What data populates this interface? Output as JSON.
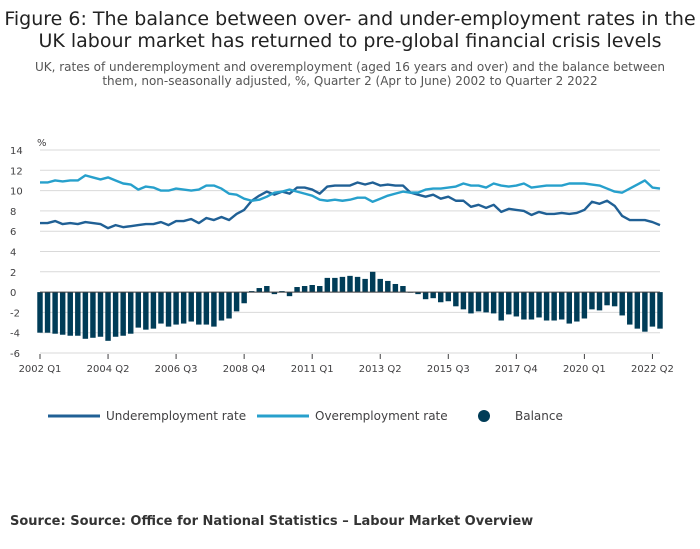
{
  "title": "Figure 6: The balance between over- and under-employment rates in the UK labour market has returned to pre-global financial crisis levels",
  "subtitle": "UK, rates of underemployment and overemployment (aged 16 years and over) and the balance between them, non-seasonally adjusted, %, Quarter 2 (Apr to June) 2002 to Quarter 2 2022",
  "source": "Source: Source: Office for National Statistics – Labour Market Overview",
  "colors": {
    "under": "#206095",
    "over": "#27a0cc",
    "balance": "#003c57",
    "grid": "#d9d9d9",
    "zero": "#414042"
  },
  "chart_data": {
    "type": "line",
    "ylabel": "%",
    "ylim": [
      -6,
      14
    ],
    "y_ticks": [
      -6,
      -4,
      -2,
      0,
      2,
      4,
      6,
      8,
      10,
      12,
      14
    ],
    "x_start": "2002 Q1",
    "x_tick_labels": [
      "2002 Q1",
      "2004 Q2",
      "2006 Q3",
      "2008 Q4",
      "2011 Q1",
      "2013 Q2",
      "2015 Q3",
      "2017 Q4",
      "2020 Q1",
      "2022 Q2"
    ],
    "x_tick_index": [
      0,
      9,
      18,
      27,
      36,
      45,
      54,
      63,
      72,
      81
    ],
    "legend": [
      "Underemployment rate",
      "Overemployment rate",
      "Balance"
    ],
    "series": [
      {
        "name": "Underemployment rate",
        "kind": "line",
        "values": [
          6.8,
          6.8,
          7.0,
          6.7,
          6.8,
          6.7,
          6.9,
          6.8,
          6.7,
          6.3,
          6.6,
          6.4,
          6.5,
          6.6,
          6.7,
          6.7,
          6.9,
          6.6,
          7.0,
          7.0,
          7.2,
          6.8,
          7.3,
          7.1,
          7.4,
          7.1,
          7.7,
          8.1,
          9.0,
          9.5,
          9.9,
          9.6,
          9.9,
          9.7,
          10.3,
          10.3,
          10.1,
          9.7,
          10.4,
          10.5,
          10.5,
          10.5,
          10.8,
          10.6,
          10.8,
          10.5,
          10.6,
          10.5,
          10.5,
          9.8,
          9.6,
          9.4,
          9.6,
          9.2,
          9.4,
          9.0,
          9.0,
          8.4,
          8.6,
          8.3,
          8.6,
          7.9,
          8.2,
          8.1,
          8.0,
          7.6,
          7.9,
          7.7,
          7.7,
          7.8,
          7.7,
          7.8,
          8.1,
          8.9,
          8.7,
          9.0,
          8.5,
          7.5,
          7.1,
          7.1,
          7.1,
          6.9,
          6.6
        ]
      },
      {
        "name": "Overemployment rate",
        "kind": "line",
        "values": [
          10.8,
          10.8,
          11.0,
          10.9,
          11.0,
          11.0,
          11.5,
          11.3,
          11.1,
          11.3,
          11.0,
          10.7,
          10.6,
          10.1,
          10.4,
          10.3,
          10.0,
          10.0,
          10.2,
          10.1,
          10.0,
          10.1,
          10.5,
          10.5,
          10.2,
          9.7,
          9.6,
          9.2,
          9.0,
          9.1,
          9.4,
          9.8,
          9.9,
          10.1,
          9.9,
          9.7,
          9.5,
          9.1,
          9.0,
          9.1,
          9.0,
          9.1,
          9.3,
          9.3,
          8.9,
          9.2,
          9.5,
          9.7,
          9.9,
          9.8,
          9.8,
          10.1,
          10.2,
          10.2,
          10.3,
          10.4,
          10.7,
          10.5,
          10.5,
          10.3,
          10.7,
          10.5,
          10.4,
          10.5,
          10.7,
          10.3,
          10.4,
          10.5,
          10.5,
          10.5,
          10.7,
          10.7,
          10.7,
          10.6,
          10.5,
          10.2,
          9.9,
          9.8,
          10.2,
          10.6,
          11.0,
          10.3,
          10.2
        ]
      },
      {
        "name": "Balance",
        "kind": "bar",
        "values": [
          -4.0,
          -4.0,
          -4.1,
          -4.2,
          -4.3,
          -4.3,
          -4.6,
          -4.5,
          -4.4,
          -4.8,
          -4.4,
          -4.3,
          -4.1,
          -3.5,
          -3.7,
          -3.6,
          -3.1,
          -3.4,
          -3.2,
          -3.1,
          -2.9,
          -3.2,
          -3.2,
          -3.4,
          -2.8,
          -2.6,
          -1.9,
          -1.1,
          0.1,
          0.4,
          0.6,
          -0.2,
          0.1,
          -0.4,
          0.5,
          0.6,
          0.7,
          0.6,
          1.4,
          1.4,
          1.5,
          1.6,
          1.5,
          1.3,
          2.0,
          1.3,
          1.1,
          0.8,
          0.6,
          0.0,
          -0.2,
          -0.7,
          -0.6,
          -1.0,
          -0.9,
          -1.4,
          -1.7,
          -2.1,
          -1.9,
          -2.0,
          -2.1,
          -2.8,
          -2.2,
          -2.4,
          -2.7,
          -2.7,
          -2.5,
          -2.8,
          -2.8,
          -2.7,
          -3.1,
          -2.9,
          -2.6,
          -1.7,
          -1.8,
          -1.3,
          -1.4,
          -2.3,
          -3.2,
          -3.6,
          -3.9,
          -3.4,
          -3.6
        ]
      }
    ]
  }
}
